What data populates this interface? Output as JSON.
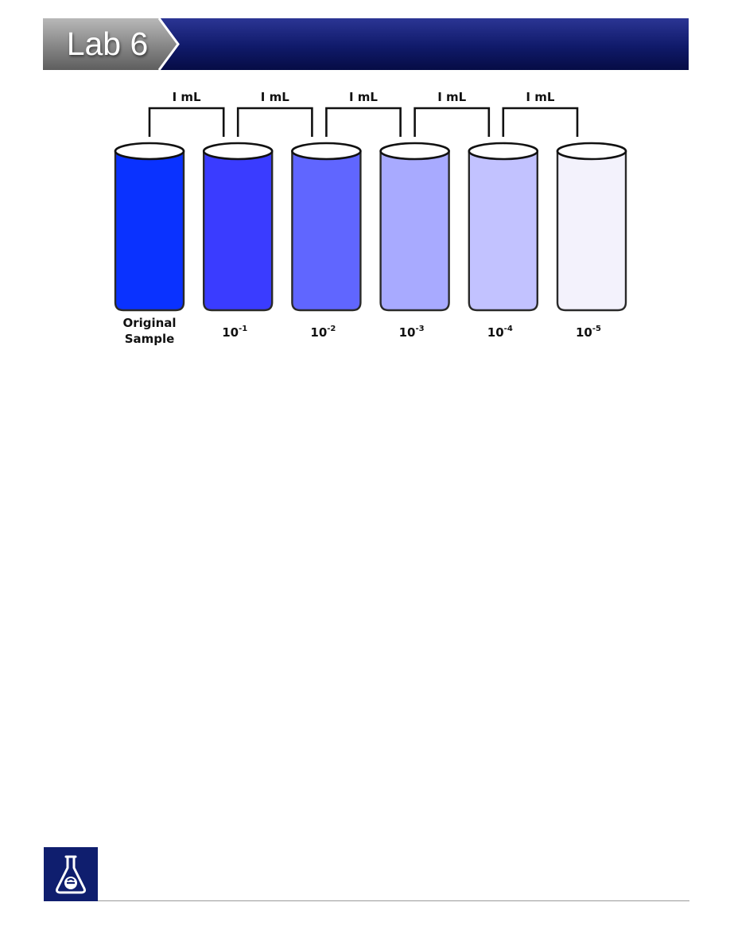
{
  "header": {
    "title": "Lab 6"
  },
  "diagram": {
    "transfer_volume_labels": [
      "I mL",
      "I mL",
      "I mL",
      "I mL",
      "I mL"
    ],
    "tubes": [
      {
        "label_lines": [
          "Original",
          "Sample"
        ],
        "fill": "#0A32FF"
      },
      {
        "label_lines": [
          "10",
          "-1"
        ],
        "fill": "#3A3CFF"
      },
      {
        "label_lines": [
          "10",
          "-2"
        ],
        "fill": "#6066FF"
      },
      {
        "label_lines": [
          "10",
          "-3"
        ],
        "fill": "#A8AAFF"
      },
      {
        "label_lines": [
          "10",
          "-4"
        ],
        "fill": "#C2C2FF"
      },
      {
        "label_lines": [
          "10",
          "-5"
        ],
        "fill": "#F3F2FC"
      }
    ]
  },
  "colors": {
    "header_band": "#0C1660",
    "header_tab": "#7A7A7A",
    "logo_background": "#0F1E6E"
  },
  "footer": {
    "logo_icon": "flask-e-icon"
  }
}
